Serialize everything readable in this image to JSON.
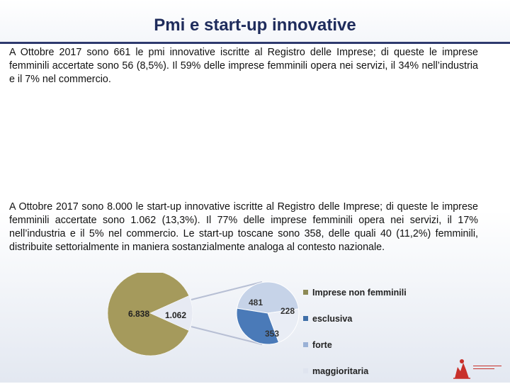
{
  "slide": {
    "title": "Pmi e start-up innovative",
    "paragraph_1": "A Ottobre 2017 sono 661 le pmi innovative iscritte al Registro delle Imprese; di queste le imprese femminili accertate sono 56 (8,5%). Il 59% delle imprese femminili opera nei servizi, il 34% nell’industria e il 7%  nel commercio.",
    "paragraph_2": "A Ottobre 2017 sono 8.000 le start-up innovative iscritte al Registro delle Imprese; di queste le imprese femminili accertate sono 1.062 (13,3%). Il 77% delle imprese femminili opera nei servizi, il 17% nell’industria e il 5%  nel commercio.  Le start-up toscane sono 358, delle quali 40 (11,2%) femminili, distribuite settorialmente in maniera sostanzialmente analoga al contesto nazionale."
  },
  "chart_data": {
    "type": "pie",
    "main_pie": {
      "slices": [
        {
          "label": "6.838",
          "value": 6838,
          "color": "#a59a5c"
        },
        {
          "label": "1.062",
          "value": 1062,
          "color": "#e7eaf3"
        }
      ]
    },
    "breakdown_pie": {
      "slices": [
        {
          "label": "481",
          "value": 481,
          "color": "#c6d3e8"
        },
        {
          "label": "228",
          "value": 228,
          "color": "#e9edf5"
        },
        {
          "label": "353",
          "value": 353,
          "color": "#4a7ab8"
        }
      ]
    },
    "legend": [
      {
        "name": "Imprese non femminili",
        "color": "#8d8a55"
      },
      {
        "name": "esclusiva",
        "color": "#3f6fa8"
      },
      {
        "name": "forte",
        "color": "#9ab1d6"
      },
      {
        "name": "maggioritaria",
        "color": "#dfe4ef"
      }
    ]
  }
}
